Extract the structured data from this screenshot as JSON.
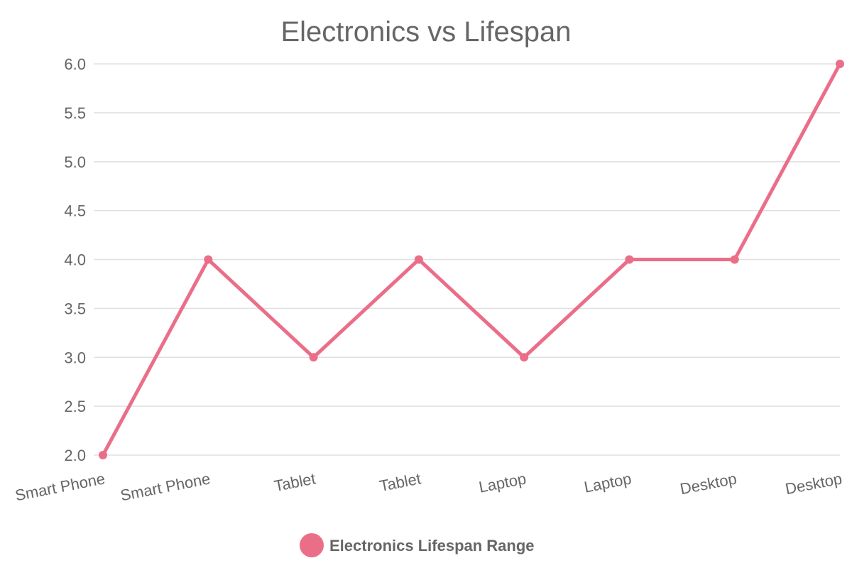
{
  "chart_data": {
    "type": "line",
    "title": "Electronics vs Lifespan",
    "xlabel": "",
    "ylabel": "",
    "categories": [
      "Smart Phone",
      "Smart Phone",
      "Tablet",
      "Tablet",
      "Laptop",
      "Laptop",
      "Desktop",
      "Desktop"
    ],
    "series": [
      {
        "name": "Electronics Lifespan Range",
        "values": [
          2,
          4,
          3,
          4,
          3,
          4,
          4,
          6
        ],
        "color": "#eb6e89"
      }
    ],
    "ylim": [
      2.0,
      6.0
    ],
    "yticks": [
      "2.0",
      "2.5",
      "3.0",
      "3.5",
      "4.0",
      "4.5",
      "5.0",
      "5.5",
      "6.0"
    ],
    "grid": true,
    "legend_position": "bottom"
  }
}
